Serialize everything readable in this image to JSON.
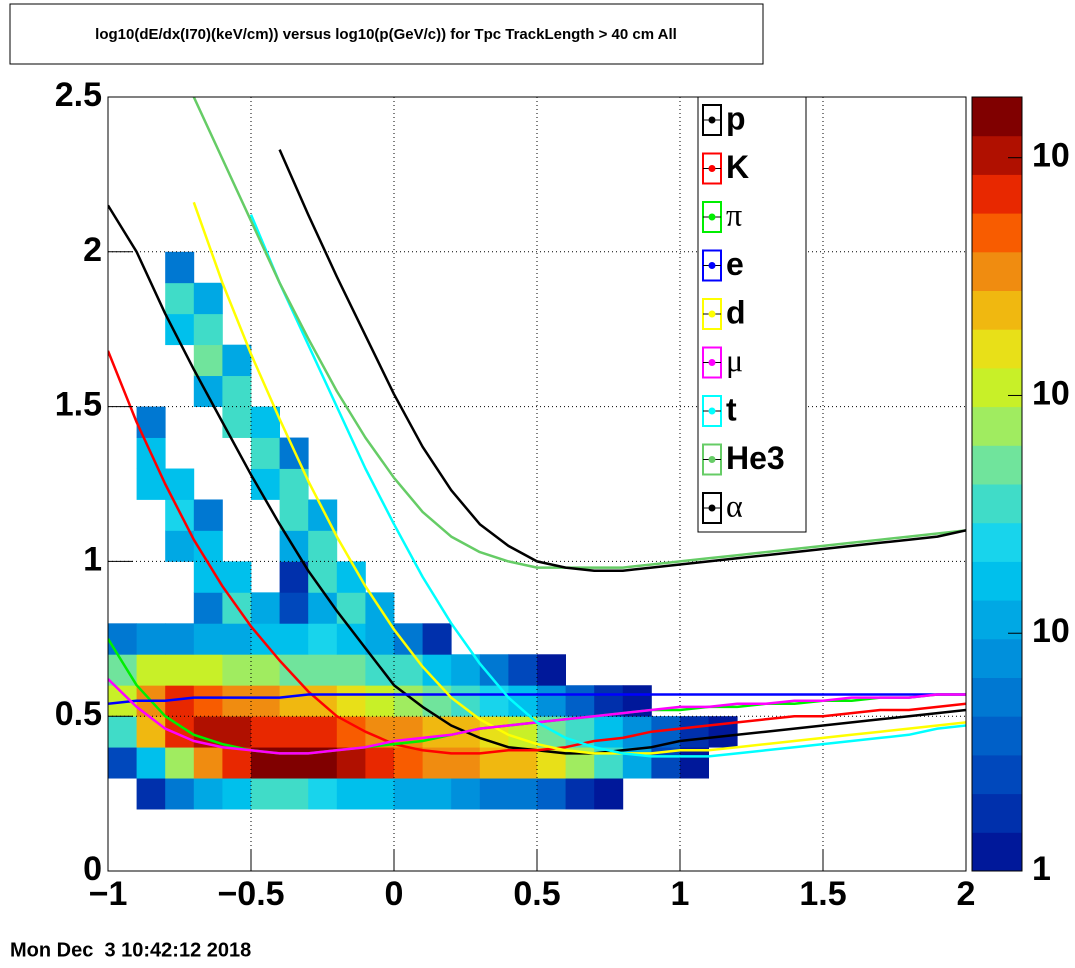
{
  "chart_data": {
    "type": "heatmap_lines",
    "title": "log10(dE/dx(I70)(keV/cm)) versus log10(p(GeV/c)) for Tpc TrackLength > 40 cm All",
    "timestamp": "Mon Dec  3 10:42:12 2018",
    "xlim": [
      -1,
      2
    ],
    "xticks": [
      {
        "value": -1,
        "label": "−1"
      },
      {
        "value": -0.5,
        "label": "−0.5"
      },
      0,
      0.5,
      1,
      1.5,
      2
    ],
    "ylim": [
      0,
      2.5
    ],
    "yticks": [
      0,
      0.5,
      1,
      1.5,
      2,
      2.5
    ],
    "grid": true,
    "zlim": [
      1,
      1800
    ],
    "zlog": true,
    "zticks": [
      1,
      10,
      {
        "value": 100,
        "label": "10"
      },
      {
        "value": 1000,
        "label": "10"
      }
    ],
    "palette": [
      "#00189a",
      "#0030ac",
      "#0048bc",
      "#0060c8",
      "#0078d2",
      "#0090dc",
      "#00a8e4",
      "#00c0ec",
      "#18d4ec",
      "#40dcc8",
      "#70e49c",
      "#a0ec60",
      "#c8f028",
      "#e8e018",
      "#f0b810",
      "#f08c10",
      "#f85c00",
      "#e82800",
      "#b01000",
      "#800000"
    ],
    "x_bins": [
      -1,
      -0.9,
      -0.8,
      -0.7,
      -0.6,
      -0.5,
      -0.4,
      -0.3,
      -0.2,
      -0.1,
      0,
      0.1,
      0.2,
      0.3,
      0.4,
      0.5,
      0.6,
      0.7,
      0.8,
      0.9,
      1,
      1.1,
      1.2,
      1.3,
      1.4,
      1.5,
      1.6,
      1.7,
      1.8,
      1.9,
      2
    ],
    "y_bins": [
      0,
      0.1,
      0.2,
      0.3,
      0.4,
      0.5,
      0.6,
      0.7,
      0.8,
      0.9,
      1,
      1.1,
      1.2,
      1.3,
      1.4,
      1.5,
      1.6,
      1.7,
      1.8,
      1.9,
      2,
      2.1,
      2.2,
      2.3,
      2.4,
      2.5
    ],
    "z": [
      [
        0,
        0,
        0,
        0,
        0,
        0,
        0,
        0,
        0,
        0,
        0,
        0,
        0,
        0,
        0,
        0,
        0,
        0,
        0,
        0,
        0,
        0,
        0,
        0,
        0,
        0,
        0,
        0,
        0,
        0
      ],
      [
        0,
        0,
        0,
        0,
        0,
        0,
        0,
        0,
        0,
        0,
        0,
        0,
        0,
        0,
        0,
        0,
        0,
        0,
        0,
        0,
        0,
        0,
        0,
        0,
        0,
        0,
        0,
        0,
        0,
        0
      ],
      [
        0,
        2,
        5,
        10,
        20,
        30,
        30,
        25,
        20,
        15,
        12,
        10,
        8,
        6,
        5,
        4,
        2,
        1,
        0,
        0,
        0,
        0,
        0,
        0,
        0,
        0,
        0,
        0,
        0,
        0
      ],
      [
        3,
        20,
        80,
        300,
        800,
        1500,
        1800,
        1500,
        1000,
        700,
        500,
        400,
        300,
        250,
        200,
        150,
        80,
        30,
        10,
        3,
        1,
        0,
        0,
        0,
        0,
        0,
        0,
        0,
        0,
        0
      ],
      [
        40,
        200,
        800,
        1200,
        1000,
        800,
        700,
        600,
        500,
        400,
        300,
        250,
        200,
        150,
        100,
        60,
        30,
        15,
        8,
        4,
        2,
        1,
        0,
        0,
        0,
        0,
        0,
        0,
        0,
        0
      ],
      [
        100,
        400,
        600,
        500,
        400,
        300,
        250,
        200,
        150,
        100,
        80,
        60,
        40,
        25,
        15,
        8,
        4,
        2,
        1,
        0,
        0,
        0,
        0,
        0,
        0,
        0,
        0,
        0,
        0,
        0
      ],
      [
        60,
        100,
        120,
        100,
        80,
        70,
        60,
        60,
        50,
        40,
        30,
        20,
        12,
        6,
        3,
        1,
        0,
        0,
        0,
        0,
        0,
        0,
        0,
        0,
        0,
        0,
        0,
        0,
        0,
        0
      ],
      [
        5,
        8,
        8,
        10,
        12,
        15,
        20,
        25,
        20,
        10,
        5,
        2,
        0,
        0,
        0,
        0,
        0,
        0,
        0,
        0,
        0,
        0,
        0,
        0,
        0,
        0,
        0,
        0,
        0,
        0
      ],
      [
        0,
        0,
        0,
        5,
        30,
        10,
        3,
        10,
        40,
        10,
        0,
        0,
        0,
        0,
        0,
        0,
        0,
        0,
        0,
        0,
        0,
        0,
        0,
        0,
        0,
        0,
        0,
        0,
        0,
        0
      ],
      [
        0,
        0,
        0,
        20,
        15,
        0,
        2,
        30,
        20,
        0,
        0,
        0,
        0,
        0,
        0,
        0,
        0,
        0,
        0,
        0,
        0,
        0,
        0,
        0,
        0,
        0,
        0,
        0,
        0,
        0
      ],
      [
        0,
        0,
        10,
        20,
        0,
        0,
        10,
        40,
        0,
        0,
        0,
        0,
        0,
        0,
        0,
        0,
        0,
        0,
        0,
        0,
        0,
        0,
        0,
        0,
        0,
        0,
        0,
        0,
        0,
        0
      ],
      [
        0,
        0,
        25,
        5,
        0,
        0,
        40,
        10,
        0,
        0,
        0,
        0,
        0,
        0,
        0,
        0,
        0,
        0,
        0,
        0,
        0,
        0,
        0,
        0,
        0,
        0,
        0,
        0,
        0,
        0
      ],
      [
        0,
        15,
        15,
        0,
        0,
        20,
        30,
        0,
        0,
        0,
        0,
        0,
        0,
        0,
        0,
        0,
        0,
        0,
        0,
        0,
        0,
        0,
        0,
        0,
        0,
        0,
        0,
        0,
        0,
        0
      ],
      [
        0,
        15,
        0,
        0,
        0,
        40,
        5,
        0,
        0,
        0,
        0,
        0,
        0,
        0,
        0,
        0,
        0,
        0,
        0,
        0,
        0,
        0,
        0,
        0,
        0,
        0,
        0,
        0,
        0,
        0
      ],
      [
        0,
        5,
        0,
        0,
        30,
        20,
        0,
        0,
        0,
        0,
        0,
        0,
        0,
        0,
        0,
        0,
        0,
        0,
        0,
        0,
        0,
        0,
        0,
        0,
        0,
        0,
        0,
        0,
        0,
        0
      ],
      [
        0,
        0,
        0,
        10,
        40,
        0,
        0,
        0,
        0,
        0,
        0,
        0,
        0,
        0,
        0,
        0,
        0,
        0,
        0,
        0,
        0,
        0,
        0,
        0,
        0,
        0,
        0,
        0,
        0,
        0
      ],
      [
        0,
        0,
        0,
        50,
        10,
        0,
        0,
        0,
        0,
        0,
        0,
        0,
        0,
        0,
        0,
        0,
        0,
        0,
        0,
        0,
        0,
        0,
        0,
        0,
        0,
        0,
        0,
        0,
        0,
        0
      ],
      [
        0,
        0,
        20,
        40,
        0,
        0,
        0,
        0,
        0,
        0,
        0,
        0,
        0,
        0,
        0,
        0,
        0,
        0,
        0,
        0,
        0,
        0,
        0,
        0,
        0,
        0,
        0,
        0,
        0,
        0
      ],
      [
        0,
        0,
        30,
        10,
        0,
        0,
        0,
        0,
        0,
        0,
        0,
        0,
        0,
        0,
        0,
        0,
        0,
        0,
        0,
        0,
        0,
        0,
        0,
        0,
        0,
        0,
        0,
        0,
        0,
        0
      ],
      [
        0,
        0,
        5,
        0,
        0,
        0,
        0,
        0,
        0,
        0,
        0,
        0,
        0,
        0,
        0,
        0,
        0,
        0,
        0,
        0,
        0,
        0,
        0,
        0,
        0,
        0,
        0,
        0,
        0,
        0
      ],
      [
        0,
        0,
        0,
        0,
        0,
        0,
        0,
        0,
        0,
        0,
        0,
        0,
        0,
        0,
        0,
        0,
        0,
        0,
        0,
        0,
        0,
        0,
        0,
        0,
        0,
        0,
        0,
        0,
        0,
        0
      ],
      [
        0,
        0,
        0,
        0,
        0,
        0,
        0,
        0,
        0,
        0,
        0,
        0,
        0,
        0,
        0,
        0,
        0,
        0,
        0,
        0,
        0,
        0,
        0,
        0,
        0,
        0,
        0,
        0,
        0,
        0
      ],
      [
        0,
        0,
        0,
        0,
        0,
        0,
        0,
        0,
        0,
        0,
        0,
        0,
        0,
        0,
        0,
        0,
        0,
        0,
        0,
        0,
        0,
        0,
        0,
        0,
        0,
        0,
        0,
        0,
        0,
        0
      ],
      [
        0,
        0,
        0,
        0,
        0,
        0,
        0,
        0,
        0,
        0,
        0,
        0,
        0,
        0,
        0,
        0,
        0,
        0,
        0,
        0,
        0,
        0,
        0,
        0,
        0,
        0,
        0,
        0,
        0,
        0
      ],
      [
        0,
        0,
        0,
        0,
        0,
        0,
        0,
        0,
        0,
        0,
        0,
        0,
        0,
        0,
        0,
        0,
        0,
        0,
        0,
        0,
        0,
        0,
        0,
        0,
        0,
        0,
        0,
        0,
        0,
        0
      ]
    ],
    "x": [
      -1,
      -0.9,
      -0.8,
      -0.7,
      -0.6,
      -0.5,
      -0.4,
      -0.3,
      -0.2,
      -0.1,
      0,
      0.1,
      0.2,
      0.3,
      0.4,
      0.5,
      0.6,
      0.7,
      0.8,
      0.9,
      1,
      1.1,
      1.2,
      1.3,
      1.4,
      1.5,
      1.6,
      1.7,
      1.8,
      1.9,
      2
    ],
    "series": [
      {
        "name": "p",
        "color": "#000000",
        "values": [
          2.15,
          2.0,
          1.8,
          1.62,
          1.45,
          1.28,
          1.12,
          0.97,
          0.84,
          0.72,
          0.6,
          0.53,
          0.47,
          0.43,
          0.4,
          0.39,
          0.38,
          0.38,
          0.39,
          0.4,
          0.42,
          0.43,
          0.44,
          0.45,
          0.46,
          0.47,
          0.48,
          0.49,
          0.5,
          0.51,
          0.52
        ]
      },
      {
        "name": "K",
        "color": "#ff0000",
        "values": [
          1.68,
          1.45,
          1.25,
          1.07,
          0.92,
          0.79,
          0.68,
          0.58,
          0.5,
          0.45,
          0.41,
          0.39,
          0.38,
          0.38,
          0.39,
          0.39,
          0.4,
          0.42,
          0.43,
          0.45,
          0.46,
          0.47,
          0.48,
          0.49,
          0.5,
          0.5,
          0.51,
          0.52,
          0.52,
          0.53,
          0.54
        ]
      },
      {
        "name": "π",
        "color": "#00ee00",
        "values": [
          0.75,
          0.6,
          0.5,
          0.44,
          0.41,
          0.39,
          0.38,
          0.38,
          0.39,
          0.4,
          0.41,
          0.42,
          0.44,
          0.46,
          0.47,
          0.48,
          0.49,
          0.5,
          0.51,
          0.52,
          0.52,
          0.53,
          0.53,
          0.54,
          0.54,
          0.55,
          0.55,
          0.56,
          0.56,
          0.57,
          0.57
        ]
      },
      {
        "name": "e",
        "color": "#0000ff",
        "values": [
          0.54,
          0.55,
          0.55,
          0.56,
          0.56,
          0.56,
          0.56,
          0.57,
          0.57,
          0.57,
          0.57,
          0.57,
          0.57,
          0.57,
          0.57,
          0.57,
          0.57,
          0.57,
          0.57,
          0.57,
          0.57,
          0.57,
          0.57,
          0.57,
          0.57,
          0.57,
          0.57,
          0.57,
          0.57,
          0.57,
          0.57
        ]
      },
      {
        "name": "d",
        "color": "#ffff00",
        "values": [
          null,
          null,
          null,
          2.16,
          1.9,
          1.67,
          1.46,
          1.26,
          1.08,
          0.92,
          0.78,
          0.66,
          0.56,
          0.49,
          0.44,
          0.41,
          0.39,
          0.38,
          0.38,
          0.38,
          0.39,
          0.39,
          0.4,
          0.41,
          0.42,
          0.43,
          0.44,
          0.45,
          0.46,
          0.47,
          0.48
        ]
      },
      {
        "name": "μ",
        "color": "#ff00ff",
        "values": [
          0.62,
          0.53,
          0.46,
          0.42,
          0.4,
          0.39,
          0.38,
          0.38,
          0.39,
          0.4,
          0.42,
          0.43,
          0.44,
          0.46,
          0.47,
          0.48,
          0.49,
          0.5,
          0.51,
          0.52,
          0.53,
          0.53,
          0.54,
          0.54,
          0.55,
          0.55,
          0.56,
          0.56,
          0.56,
          0.57,
          0.57
        ]
      },
      {
        "name": "t",
        "color": "#00ffff",
        "values": [
          null,
          null,
          null,
          null,
          null,
          2.12,
          1.9,
          1.7,
          1.5,
          1.3,
          1.12,
          0.95,
          0.8,
          0.67,
          0.56,
          0.48,
          0.43,
          0.4,
          0.38,
          0.37,
          0.37,
          0.37,
          0.38,
          0.39,
          0.4,
          0.41,
          0.42,
          0.43,
          0.44,
          0.46,
          0.47
        ]
      },
      {
        "name": "He3",
        "color": "#66cc66",
        "values": [
          null,
          null,
          null,
          2.5,
          2.3,
          2.1,
          1.9,
          1.72,
          1.55,
          1.4,
          1.27,
          1.16,
          1.08,
          1.03,
          1.0,
          0.98,
          0.98,
          0.98,
          0.98,
          0.99,
          1.0,
          1.01,
          1.02,
          1.03,
          1.04,
          1.05,
          1.06,
          1.07,
          1.08,
          1.09,
          1.1
        ]
      },
      {
        "name": "α",
        "color": "#000000",
        "values": [
          null,
          null,
          null,
          null,
          null,
          null,
          2.33,
          2.12,
          1.92,
          1.73,
          1.54,
          1.37,
          1.23,
          1.12,
          1.05,
          1.0,
          0.98,
          0.97,
          0.97,
          0.98,
          0.99,
          1.0,
          1.01,
          1.02,
          1.03,
          1.04,
          1.05,
          1.06,
          1.07,
          1.08,
          1.1
        ]
      }
    ]
  }
}
